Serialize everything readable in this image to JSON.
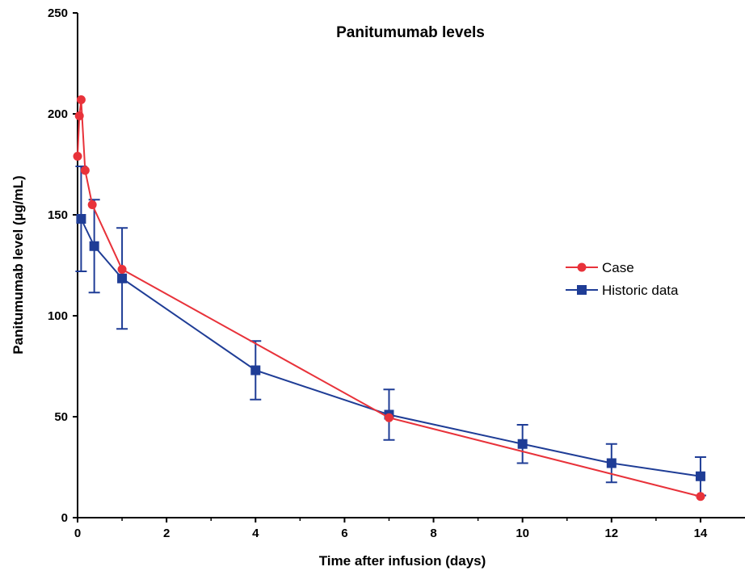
{
  "chart_data": {
    "type": "line",
    "title": "Panitumumab levels",
    "xlabel": "Time after infusion (days)",
    "ylabel": "Panitumumab level (µg/mL)",
    "xlim": [
      0,
      15
    ],
    "ylim": [
      0,
      250
    ],
    "x_ticks": [
      0,
      2,
      4,
      6,
      8,
      10,
      12,
      14
    ],
    "y_ticks": [
      0,
      50,
      100,
      150,
      200,
      250
    ],
    "grid": false,
    "legend_position": "right",
    "series": [
      {
        "name": "Case",
        "color": "#e8323a",
        "marker": "circle",
        "x": [
          0.0,
          0.04,
          0.08,
          0.17,
          0.33,
          1.0,
          7.0,
          14.0
        ],
        "y": [
          179,
          199,
          207,
          172,
          155,
          123,
          49.5,
          10.5
        ]
      },
      {
        "name": "Historic data",
        "color": "#1f3d96",
        "marker": "square",
        "x": [
          0.08,
          0.375,
          1.0,
          4.0,
          7.0,
          10.0,
          12.0,
          14.0
        ],
        "y": [
          148,
          134.5,
          118.5,
          73,
          51,
          36.5,
          27,
          20.5
        ],
        "error": [
          26,
          23,
          25,
          14.5,
          12.5,
          9.5,
          9.5,
          9.5
        ]
      }
    ]
  }
}
